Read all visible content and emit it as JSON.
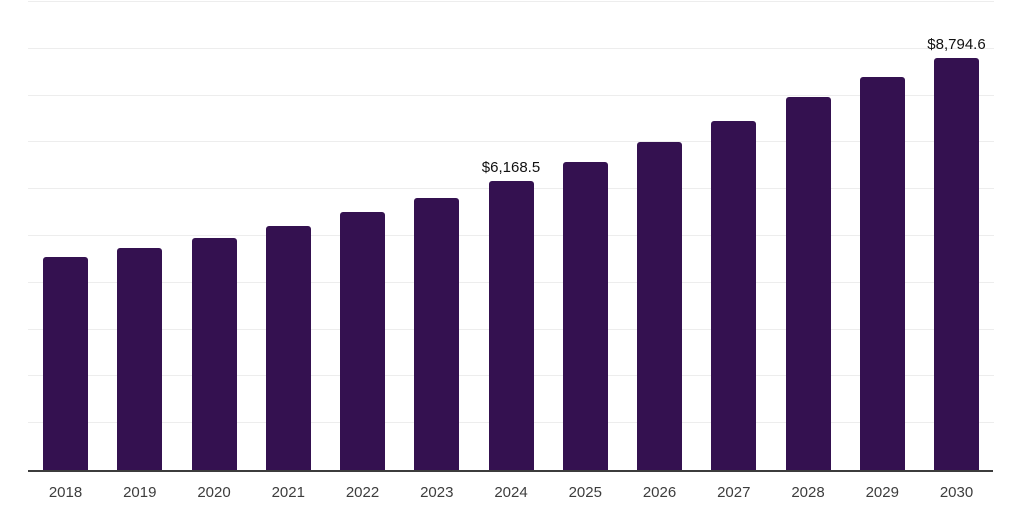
{
  "chart_data": {
    "type": "bar",
    "title": "",
    "xlabel": "",
    "ylabel": "",
    "categories": [
      "2018",
      "2019",
      "2020",
      "2021",
      "2022",
      "2023",
      "2024",
      "2025",
      "2026",
      "2027",
      "2028",
      "2029",
      "2030"
    ],
    "values": [
      4550,
      4745,
      4955,
      5215,
      5510,
      5820,
      6168.5,
      6585,
      7000,
      7455,
      7970,
      8390,
      8794.6
    ],
    "data_labels": [
      {
        "category": "2024",
        "text": "$6,168.5"
      },
      {
        "category": "2030",
        "text": "$8,794.6"
      }
    ],
    "ylim": [
      0,
      10000
    ],
    "gridline_step": 1000,
    "grid": "horizontal",
    "y_tick_labels_shown": false,
    "legend": "none",
    "colors": {
      "bar_fill": "#341150",
      "axis_line": "#3c3c3c",
      "gridline": "#ededed",
      "x_tick_label": "#3d3d3d",
      "data_label": "#111111",
      "background": "#ffffff"
    }
  }
}
